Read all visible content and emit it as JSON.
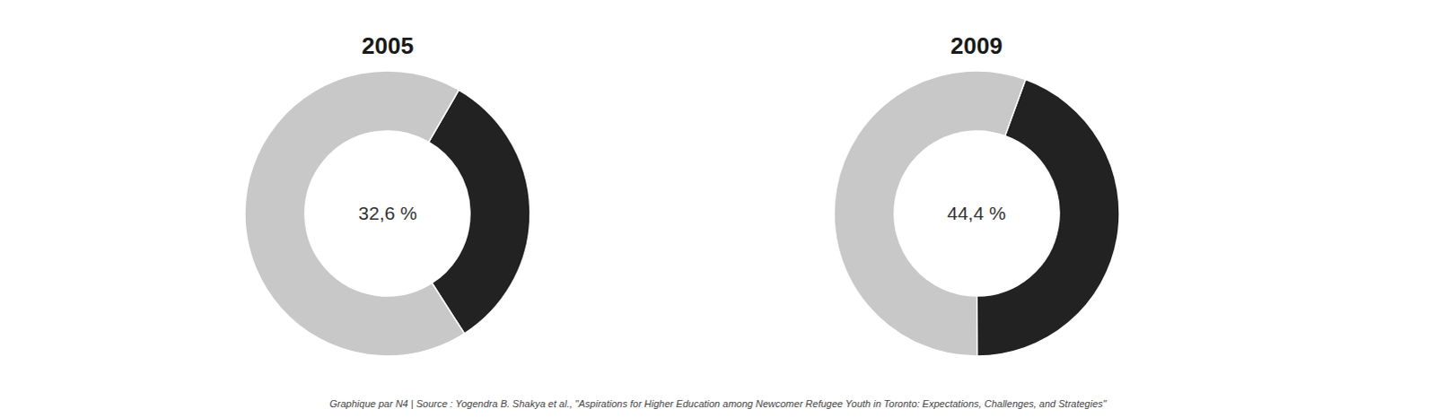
{
  "chart_data": [
    {
      "type": "donut",
      "title": "2005",
      "categories": [
        "2005",
        null
      ],
      "values": [
        32.6,
        67.4
      ],
      "value_labels": [
        "32,6 %",
        null
      ],
      "colors": [
        "#222222",
        "#c8c8c8"
      ],
      "data_labels": true
    },
    {
      "type": "donut",
      "title": "2009",
      "categories": [
        "2009",
        null
      ],
      "values": [
        44.4,
        55.6
      ],
      "value_labels": [
        "44,4 %",
        null
      ],
      "colors": [
        "#222222",
        "#c8c8c8"
      ],
      "data_labels": true
    }
  ],
  "annotations": [
    "Graphique par N4 | Source : Yogendra B. Shakya et al., \"Aspirations for Higher Education among Newcomer Refugee Youth in Toronto: Expectations, Challenges, and Strategies\""
  ]
}
